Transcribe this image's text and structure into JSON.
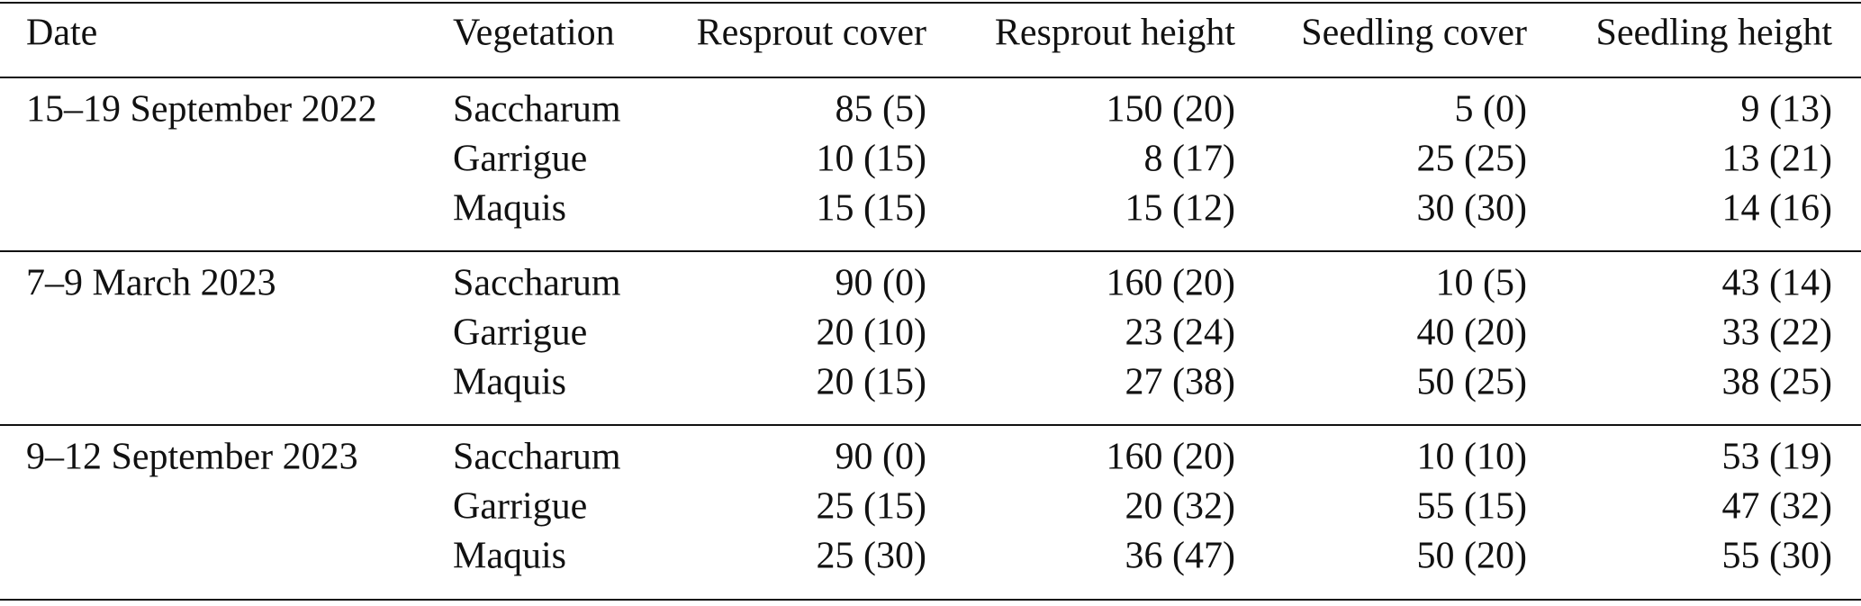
{
  "table": {
    "header": [
      "Date",
      "Vegetation",
      "Resprout cover",
      "Resprout height",
      "Seedling cover",
      "Seedling height"
    ],
    "groups": [
      {
        "date": "15–19 September 2022",
        "rows": [
          [
            "Saccharum",
            "85 (5)",
            "150 (20)",
            "5 (0)",
            "9 (13)"
          ],
          [
            "Garrigue",
            "10 (15)",
            "8 (17)",
            "25 (25)",
            "13 (21)"
          ],
          [
            "Maquis",
            "15 (15)",
            "15 (12)",
            "30 (30)",
            "14 (16)"
          ]
        ]
      },
      {
        "date": "7–9 March 2023",
        "rows": [
          [
            "Saccharum",
            "90 (0)",
            "160 (20)",
            "10 (5)",
            "43 (14)"
          ],
          [
            "Garrigue",
            "20 (10)",
            "23 (24)",
            "40 (20)",
            "33 (22)"
          ],
          [
            "Maquis",
            "20 (15)",
            "27 (38)",
            "50 (25)",
            "38 (25)"
          ]
        ]
      },
      {
        "date": "9–12 September 2023",
        "rows": [
          [
            "Saccharum",
            "90 (0)",
            "160 (20)",
            "10 (10)",
            "53 (19)"
          ],
          [
            "Garrigue",
            "25 (15)",
            "20 (32)",
            "55 (15)",
            "47 (32)"
          ],
          [
            "Maquis",
            "25 (30)",
            "36 (47)",
            "50 (20)",
            "55 (30)"
          ]
        ]
      }
    ]
  }
}
